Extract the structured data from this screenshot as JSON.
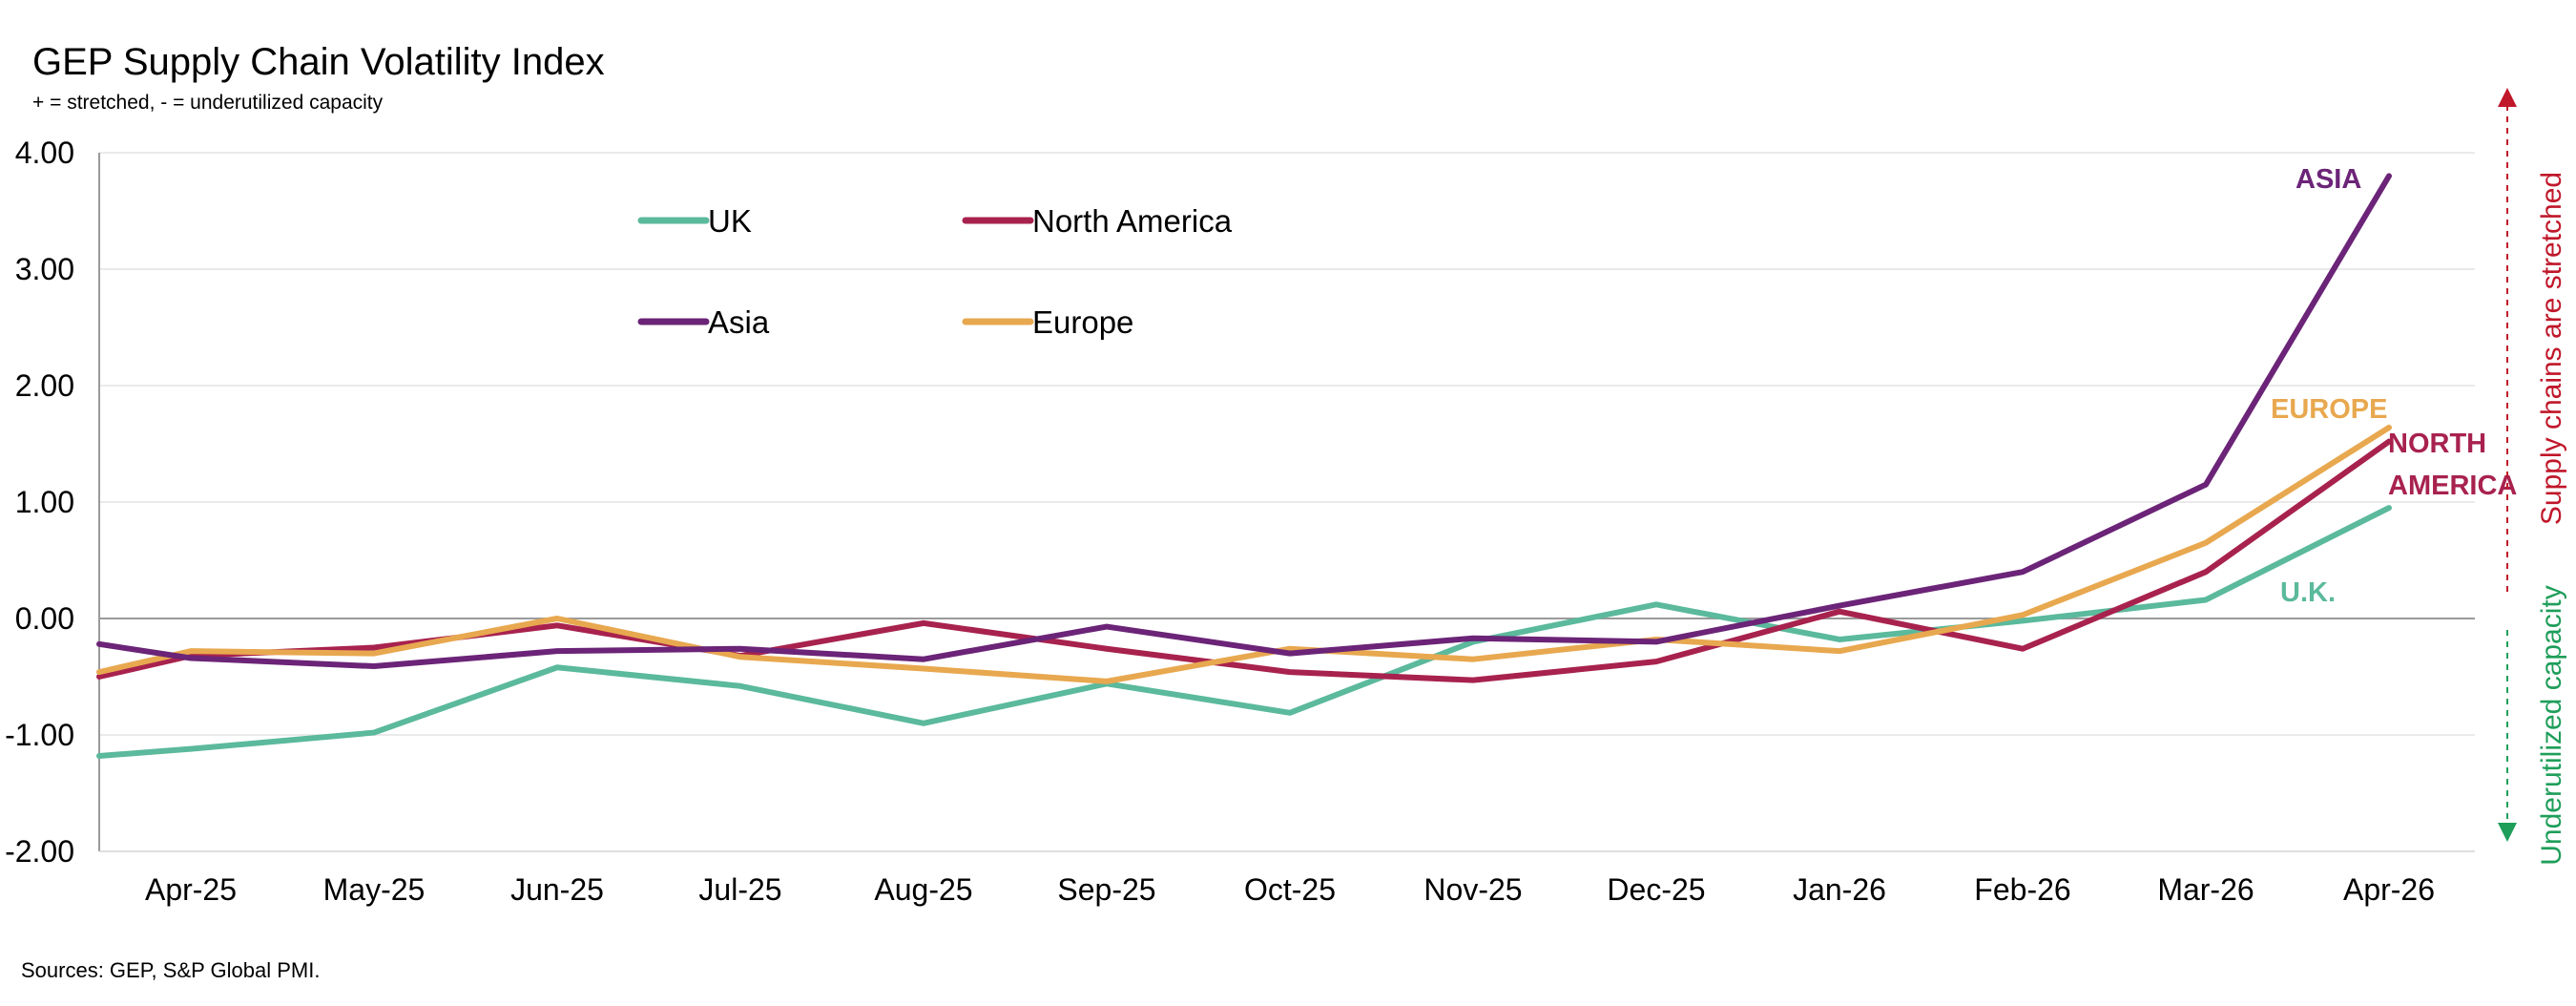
{
  "title": "GEP Supply Chain Volatility Index",
  "subtitle": "+ = stretched, - = underutilized capacity",
  "source": "Sources: GEP, S&P Global PMI.",
  "side_labels": {
    "up": "Supply chains are stretched",
    "down": "Underutilized capacity",
    "up_color": "#c0172a",
    "down_color": "#1f9e5a"
  },
  "chart_data": {
    "type": "line",
    "title": "GEP Supply Chain Volatility Index",
    "subtitle": "+ = stretched, - = underutilized capacity",
    "xlabel": "",
    "ylabel": "",
    "categories": [
      "Apr-25",
      "May-25",
      "Jun-25",
      "Jul-25",
      "Aug-25",
      "Sep-25",
      "Oct-25",
      "Nov-25",
      "Dec-25",
      "Jan-26",
      "Feb-26",
      "Mar-26",
      "Apr-26"
    ],
    "ylim": [
      -2,
      4
    ],
    "yticks": [
      "4.00",
      "3.00",
      "2.00",
      "1.00",
      "0.00",
      "-1.00",
      "-2.00"
    ],
    "grid": true,
    "legend_position": "top-left",
    "series": [
      {
        "name": "UK",
        "color": "#5bb99c",
        "start": -1.18,
        "values": [
          -1.12,
          -0.98,
          -0.42,
          -0.58,
          -0.9,
          -0.56,
          -0.81,
          -0.2,
          0.12,
          -0.18,
          -0.02,
          0.16,
          0.95
        ],
        "end_label": "U.K."
      },
      {
        "name": "North America",
        "color": "#a8224e",
        "start": -0.5,
        "values": [
          -0.32,
          -0.25,
          -0.06,
          -0.32,
          -0.04,
          -0.26,
          -0.46,
          -0.53,
          -0.37,
          0.06,
          -0.26,
          0.4,
          1.52
        ],
        "end_label": "NORTH AMERICA"
      },
      {
        "name": "Asia",
        "color": "#6b2477",
        "start": -0.22,
        "values": [
          -0.34,
          -0.41,
          -0.28,
          -0.26,
          -0.35,
          -0.07,
          -0.3,
          -0.17,
          -0.2,
          0.11,
          0.4,
          1.15,
          3.8
        ],
        "end_label": "ASIA"
      },
      {
        "name": "Europe",
        "color": "#e8a84f",
        "start": -0.46,
        "values": [
          -0.28,
          -0.3,
          0.0,
          -0.33,
          -0.43,
          -0.54,
          -0.26,
          -0.35,
          -0.18,
          -0.28,
          0.03,
          0.65,
          1.64
        ],
        "end_label": "EUROPE"
      }
    ]
  }
}
